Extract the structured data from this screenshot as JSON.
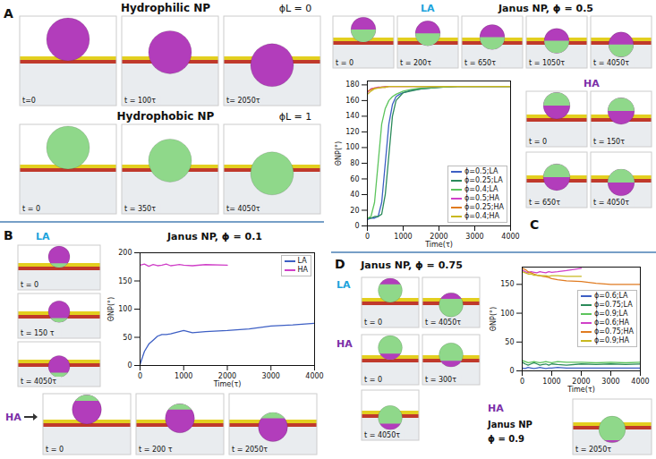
{
  "panels": [
    {
      "label": "A",
      "groups": [
        {
          "title": "Hydrophilic NP",
          "phi": "ϕL = 0",
          "frames": [
            "t=0",
            "t = 100τ",
            "t= 2050τ"
          ]
        },
        {
          "title": "Hydrophobic NP",
          "phi": "ϕL = 1",
          "frames": [
            "t = 0",
            "t = 350τ",
            "t= 4050τ"
          ]
        }
      ]
    },
    {
      "label": "B",
      "title": "Janus NP, ϕ = 0.1",
      "groups": [
        {
          "title": "LA",
          "frames": [
            "t = 0",
            "t = 150 τ",
            "t = 4050τ"
          ]
        },
        {
          "title": "HA",
          "frames": [
            "t = 0",
            "t = 200 τ",
            "t = 2050τ"
          ]
        }
      ]
    },
    {
      "label": "C",
      "title": "Janus NP, ϕ = 0.5",
      "groups": [
        {
          "title": "LA",
          "frames": [
            "t = 0",
            "t = 200τ",
            "t = 650τ",
            "t = 1050τ",
            "t = 4050τ"
          ]
        },
        {
          "title": "HA",
          "frames": [
            "t = 0",
            "t = 150τ",
            "t = 650τ",
            "t = 4050τ"
          ]
        }
      ]
    },
    {
      "label": "D",
      "title": "Janus NP, ϕ = 0.75",
      "groups": [
        {
          "title": "LA",
          "frames": [
            "t = 0",
            "t = 4050τ"
          ]
        },
        {
          "title": "HA",
          "frames": [
            "t = 0",
            "t = 300τ",
            "t = 4050τ"
          ]
        },
        {
          "title": "HA",
          "subtitle": "Janus NP",
          "phi": "ϕ = 0.9",
          "frames": [
            "t = 2050τ"
          ]
        }
      ]
    }
  ],
  "chart_data": [
    {
      "panel": "B",
      "type": "line",
      "x_label": "Time(τ)",
      "y_label": "ΘNP(°)",
      "x": [
        0,
        100,
        200,
        300,
        400,
        500,
        600,
        700,
        800,
        900,
        1000,
        1200,
        1500,
        2000,
        2500,
        3000,
        3500,
        4000
      ],
      "xlim": [
        0,
        4000
      ],
      "xticks": [
        0,
        1000,
        2000,
        3000,
        4000
      ],
      "ylim": [
        0,
        200
      ],
      "yticks": [
        0,
        50,
        100,
        150,
        200
      ],
      "grid": false,
      "legend": "upper right",
      "series": [
        {
          "name": "LA",
          "color": "#3d5fc4",
          "values": [
            2,
            25,
            38,
            45,
            52,
            55,
            55,
            56,
            58,
            60,
            62,
            58,
            60,
            62,
            65,
            70,
            72,
            75
          ]
        },
        {
          "name": "HA",
          "color": "#d040c8",
          "values": [
            178,
            180,
            176,
            179,
            177,
            178,
            180,
            177,
            178,
            179,
            178,
            177,
            179,
            178,
            null,
            null,
            null,
            null
          ]
        }
      ]
    },
    {
      "panel": "C",
      "type": "line",
      "x_label": "Time(τ)",
      "y_label": "ΘNP(°)",
      "x": [
        0,
        100,
        200,
        300,
        400,
        500,
        600,
        700,
        800,
        900,
        1000,
        1200,
        1500,
        2000,
        2500,
        3000,
        3500,
        4000
      ],
      "xlim": [
        0,
        4000
      ],
      "xticks": [
        0,
        1000,
        2000,
        3000,
        4000
      ],
      "ylim": [
        0,
        185
      ],
      "yticks": [
        0,
        20,
        40,
        60,
        80,
        100,
        120,
        140,
        160,
        180
      ],
      "grid": false,
      "legend": "lower right",
      "series": [
        {
          "name": "ϕ=0.5;LA",
          "color": "#3d5fc4",
          "values": [
            8,
            10,
            10,
            12,
            30,
            80,
            130,
            155,
            165,
            168,
            170,
            173,
            175,
            177,
            178,
            178,
            178,
            178
          ]
        },
        {
          "name": "ϕ=0.25;LA",
          "color": "#2b8a5a",
          "values": [
            10,
            10,
            12,
            12,
            15,
            40,
            90,
            140,
            160,
            165,
            170,
            172,
            175,
            177,
            178,
            178,
            178,
            178
          ]
        },
        {
          "name": "ϕ=0.4;LA",
          "color": "#5cc45c",
          "values": [
            10,
            12,
            30,
            80,
            130,
            150,
            160,
            165,
            168,
            170,
            172,
            174,
            176,
            177,
            178,
            178,
            178,
            178
          ]
        },
        {
          "name": "ϕ=0.5;HA",
          "color": "#d040c8",
          "values": [
            170,
            175,
            176,
            177,
            177,
            178,
            178,
            178,
            178,
            178,
            178,
            178,
            178,
            178,
            null,
            null,
            null,
            null
          ]
        },
        {
          "name": "ϕ=0.25;HA",
          "color": "#e07b20",
          "values": [
            172,
            174,
            176,
            176,
            177,
            177,
            178,
            178,
            178,
            178,
            178,
            178,
            178,
            178,
            178,
            178,
            178,
            178
          ]
        },
        {
          "name": "ϕ=0.4;HA",
          "color": "#c8b820",
          "values": [
            168,
            172,
            175,
            176,
            177,
            177,
            178,
            178,
            178,
            178,
            178,
            178,
            178,
            178,
            178,
            178,
            178,
            178
          ]
        }
      ]
    },
    {
      "panel": "D",
      "type": "line",
      "x_label": "Time(τ)",
      "y_label": "ΘNP(°)",
      "x": [
        0,
        100,
        200,
        300,
        400,
        500,
        600,
        700,
        800,
        900,
        1000,
        1200,
        1500,
        2000,
        2500,
        3000,
        3500,
        4000
      ],
      "xlim": [
        0,
        4000
      ],
      "xticks": [
        0,
        1000,
        2000,
        3000,
        4000
      ],
      "ylim": [
        0,
        180
      ],
      "yticks": [
        0,
        50,
        100,
        150
      ],
      "grid": false,
      "legend": "right",
      "series": [
        {
          "name": "ϕ=0.6;LA",
          "color": "#3d5fc4",
          "values": [
            5,
            4,
            6,
            5,
            4,
            5,
            6,
            5,
            4,
            5,
            5,
            6,
            5,
            5,
            5,
            5,
            5,
            5
          ]
        },
        {
          "name": "ϕ=0.75;LA",
          "color": "#2b8a5a",
          "values": [
            15,
            12,
            10,
            12,
            14,
            12,
            10,
            11,
            12,
            10,
            12,
            11,
            10,
            12,
            11,
            12,
            11,
            12
          ]
        },
        {
          "name": "ϕ=0.9;LA",
          "color": "#5cc45c",
          "values": [
            18,
            16,
            14,
            15,
            16,
            15,
            14,
            15,
            16,
            15,
            14,
            16,
            15,
            15,
            14,
            15,
            14,
            15
          ]
        },
        {
          "name": "ϕ=0.6;HA",
          "color": "#d040c8",
          "values": [
            175,
            172,
            170,
            172,
            171,
            170,
            172,
            171,
            170,
            172,
            171,
            172,
            174,
            178,
            null,
            null,
            null,
            null
          ]
        },
        {
          "name": "ϕ=0.75;HA",
          "color": "#e07b20",
          "values": [
            178,
            176,
            172,
            170,
            168,
            166,
            165,
            164,
            163,
            162,
            160,
            158,
            156,
            155,
            152,
            150,
            150,
            150
          ]
        },
        {
          "name": "ϕ=0.9;HA",
          "color": "#c8b820",
          "values": [
            172,
            170,
            168,
            168,
            166,
            166,
            165,
            165,
            165,
            164,
            165,
            165,
            164,
            164,
            null,
            null,
            null,
            null
          ]
        }
      ]
    }
  ]
}
